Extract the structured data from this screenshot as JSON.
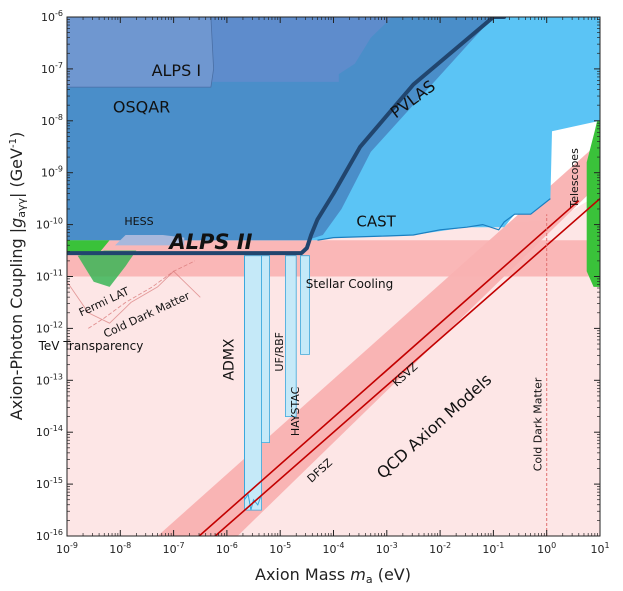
{
  "chart_data": {
    "type": "area",
    "x_scale": "log",
    "y_scale": "log",
    "xlim": [
      1e-09,
      10
    ],
    "ylim": [
      1e-16,
      1e-06
    ],
    "xlabel": "Axion Mass",
    "xlabel_symbol": "m",
    "xlabel_sub": "a",
    "xlabel_unit": "(eV)",
    "ylabel": "Axion-Photon Coupling",
    "ylabel_symbol": "g",
    "ylabel_sub": "aγγ",
    "ylabel_unit": "(GeV",
    "x_ticks": [
      -9,
      -8,
      -7,
      -6,
      -5,
      -4,
      -3,
      -2,
      -1,
      0,
      1
    ],
    "y_ticks": [
      -16,
      -15,
      -14,
      -13,
      -12,
      -11,
      -10,
      -9,
      -8,
      -7,
      -6
    ],
    "colors": {
      "light_blue": "#5bc4f5",
      "mid_blue": "#4a8ec9",
      "lab_blue": "#5e8ccc",
      "dark_blue": "#21456e",
      "haloscope_fill": "#c5e9f8",
      "haloscope_edge": "#3aa8dc",
      "green": "#3ac23a",
      "pink_light": "#fde6e6",
      "pink_band": "#f9b1b1",
      "red_line": "#c20000"
    },
    "labels": [
      {
        "key": "alps1",
        "text": "ALPS I"
      },
      {
        "key": "osqar",
        "text": "OSQAR"
      },
      {
        "key": "pvlas",
        "text": "PVLAS"
      },
      {
        "key": "hess",
        "text": "HESS"
      },
      {
        "key": "alps2",
        "text": "ALPS II"
      },
      {
        "key": "cast",
        "text": "CAST"
      },
      {
        "key": "telescopes",
        "text": "Telescopes"
      },
      {
        "key": "fermi",
        "text": "Fermi LAT"
      },
      {
        "key": "cdm_left",
        "text": "Cold Dark Matter"
      },
      {
        "key": "stellar",
        "text": "Stellar Cooling"
      },
      {
        "key": "tev",
        "text": "TeV Transparency"
      },
      {
        "key": "admx",
        "text": "ADMX"
      },
      {
        "key": "ufrbf",
        "text": "UF/RBF"
      },
      {
        "key": "haystac",
        "text": "HAYSTAC"
      },
      {
        "key": "ksvz",
        "text": "KSVZ"
      },
      {
        "key": "qcd",
        "text": "QCD Axion Models"
      },
      {
        "key": "dfsz",
        "text": "DFSZ"
      },
      {
        "key": "cdm_right",
        "text": "Cold Dark Matter"
      }
    ],
    "models": [
      {
        "name": "KSVZ",
        "start": [
          -6.52,
          -16
        ],
        "end": [
          0.6,
          -9.54
        ]
      },
      {
        "name": "DFSZ",
        "start": [
          -6.22,
          -16
        ],
        "end": [
          1.0,
          -9.5
        ]
      }
    ],
    "cold_dark_matter_mass": 1
  }
}
